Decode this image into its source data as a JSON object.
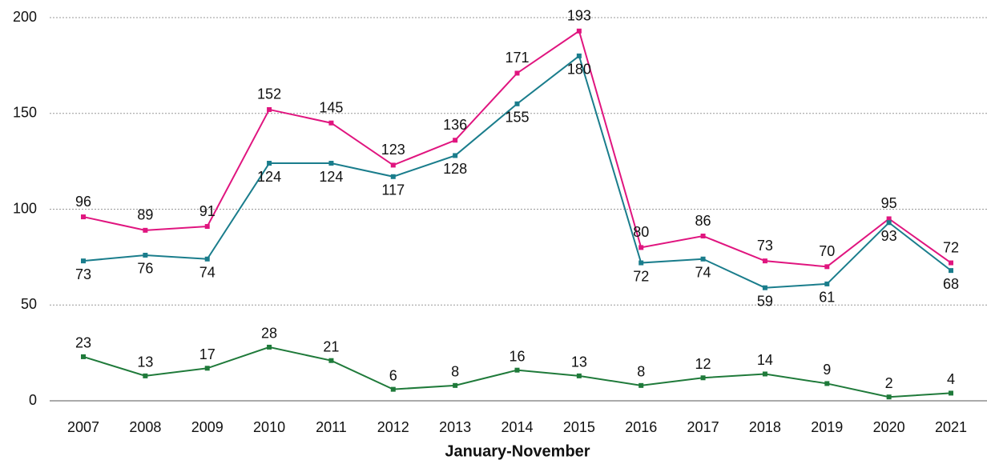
{
  "chart_data": {
    "type": "line",
    "x_label": "January-November",
    "categories": [
      "2007",
      "2008",
      "2009",
      "2010",
      "2011",
      "2012",
      "2013",
      "2014",
      "2015",
      "2016",
      "2017",
      "2018",
      "2019",
      "2020",
      "2021"
    ],
    "series": [
      {
        "color": "#e0157f",
        "values": [
          96,
          89,
          91,
          152,
          145,
          123,
          136,
          171,
          193,
          80,
          86,
          73,
          70,
          95,
          72
        ]
      },
      {
        "color": "#1a7d8c",
        "values": [
          73,
          76,
          74,
          124,
          124,
          117,
          128,
          155,
          180,
          72,
          74,
          59,
          61,
          93,
          68
        ]
      },
      {
        "color": "#1f7a3a",
        "values": [
          23,
          13,
          17,
          28,
          21,
          6,
          8,
          16,
          13,
          8,
          12,
          14,
          9,
          2,
          4
        ]
      }
    ],
    "ylim": [
      0,
      200
    ],
    "yticks": [
      0,
      50,
      100,
      150,
      200
    ],
    "grid": true
  }
}
